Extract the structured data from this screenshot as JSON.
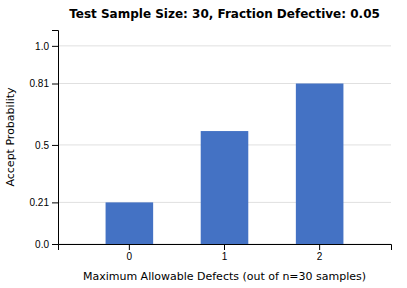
{
  "chart_data": {
    "type": "bar",
    "title": "Test Sample Size: 30, Fraction Defective: 0.05",
    "categories": [
      "0",
      "1",
      "2"
    ],
    "values": [
      0.21,
      0.57,
      0.81
    ],
    "color": "#4472c4",
    "xlabel": "Maximum Allowable Defects (out of n=30 samples)",
    "ylabel": "Accept Probability",
    "ylim": [
      0,
      1.08
    ],
    "yticks": [
      {
        "value": 0,
        "label": "0.0"
      },
      0.21,
      0.5,
      0.81,
      {
        "value": 1,
        "label": "1.0"
      }
    ],
    "grid": true
  }
}
